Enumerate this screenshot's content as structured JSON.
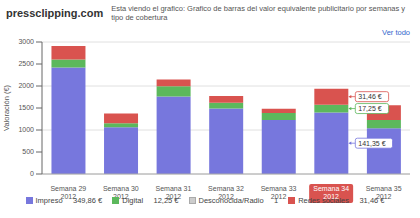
{
  "chart_data": {
    "type": "bar",
    "stacked": true,
    "title": "Esta viendo el grafico: Grafico de barras del valor equivalente publicitario por semanas y tipo de cobertura",
    "subtitle": "pressclipping.com",
    "y_label": "Valoración (€)",
    "categories": [
      "Semana 29 2012",
      "Semana 30 2012",
      "Semana 31 2012",
      "Semana 32 2012",
      "Semana 33 2012",
      "Semana 34 2012",
      "Semana 35 2012"
    ],
    "series": [
      {
        "name": "Impreso     349,86 €",
        "color": "#7777dd",
        "values": [
          2420,
          1060,
          1760,
          1490,
          1230,
          1400,
          1040
        ]
      },
      {
        "name": "Digital     12,25 €",
        "color": "#5cb85c",
        "values": [
          180,
          95,
          235,
          130,
          155,
          175,
          185
        ]
      },
      {
        "name": "Desconocida/Radio     1",
        "color": "#cccccc",
        "values": [
          null,
          null,
          null,
          null,
          null,
          null,
          null
        ]
      },
      {
        "name": "Redes sociales     31,46 €",
        "color": "#d9534f",
        "values": [
          310,
          220,
          155,
          155,
          100,
          365,
          340
        ]
      }
    ],
    "ylim": [
      0,
      3000
    ],
    "yticks": [
      0,
      500,
      1000,
      1500,
      2000,
      2500,
      3000
    ],
    "grid": true,
    "legend": "bottom",
    "annotations": [
      {
        "text": "141,35 €",
        "category": "Semana 34 2012",
        "series": "Impreso     349,86 €"
      },
      {
        "text": "17,25 €",
        "category": "Semana 34 2012",
        "series": "Digital     12,25 €"
      },
      {
        "text": "31,46 €",
        "category": "Semana 34 2012",
        "series": "Redes sociales     31,46 €"
      },
      {
        "text": "Ver todo"
      }
    ]
  }
}
